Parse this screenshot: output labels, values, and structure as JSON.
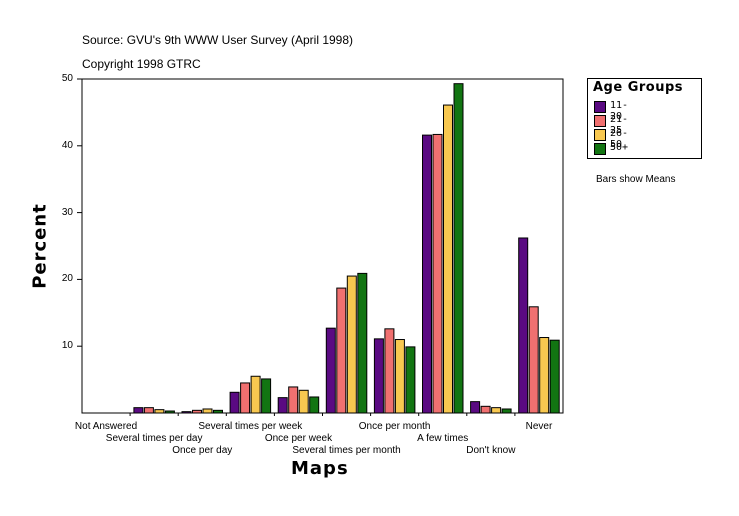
{
  "chart_data": {
    "type": "bar",
    "source_line": "Source: GVU's 9th WWW User Survey (April 1998)",
    "copyright_line": "Copyright 1998 GTRC",
    "xlabel": "Maps",
    "ylabel": "Percent",
    "ylim": [
      0,
      50
    ],
    "yticks": [
      10,
      20,
      30,
      40,
      50
    ],
    "note": "Bars show Means",
    "legend_title": "Age Groups",
    "categories": [
      "Not Answered",
      "Several times per day",
      "Once per day",
      "Several times per week",
      "Once per week",
      "Several times per month",
      "Once per month",
      "A few times",
      "Don't know",
      "Never"
    ],
    "series": [
      {
        "name": "11-20",
        "color": "#5a0a82",
        "values": [
          0,
          0.8,
          0.2,
          3.1,
          2.3,
          12.7,
          11.1,
          41.6,
          1.7,
          26.2
        ]
      },
      {
        "name": "21-25",
        "color": "#f07070",
        "values": [
          0,
          0.8,
          0.4,
          4.5,
          3.9,
          18.7,
          12.6,
          41.7,
          1.0,
          15.9
        ]
      },
      {
        "name": "26-50",
        "color": "#f8c850",
        "values": [
          0,
          0.5,
          0.6,
          5.5,
          3.4,
          20.5,
          11.0,
          46.1,
          0.8,
          11.3
        ]
      },
      {
        "name": "50+",
        "color": "#127512",
        "values": [
          0,
          0.3,
          0.4,
          5.1,
          2.4,
          20.9,
          9.9,
          49.3,
          0.6,
          10.9
        ]
      }
    ]
  }
}
